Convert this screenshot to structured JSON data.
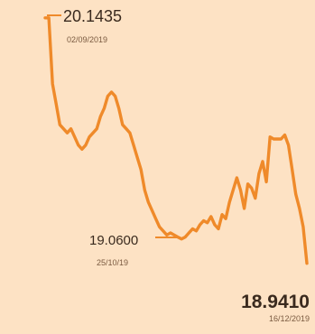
{
  "chart_data": {
    "type": "line",
    "title": "",
    "xlabel": "",
    "ylabel": "",
    "color": "#ef8a2a",
    "background": "#fde2c4",
    "grid": false,
    "legend": "none",
    "x_range": [
      "02/09/2019",
      "16/12/2019"
    ],
    "ylim": [
      18.9,
      20.2
    ],
    "series": [
      {
        "values": [
          20.1435,
          20.1435,
          19.82,
          19.72,
          19.62,
          19.6,
          19.58,
          19.6,
          19.56,
          19.52,
          19.5,
          19.52,
          19.56,
          19.58,
          19.6,
          19.66,
          19.7,
          19.76,
          19.78,
          19.76,
          19.7,
          19.62,
          19.6,
          19.58,
          19.52,
          19.46,
          19.4,
          19.3,
          19.24,
          19.2,
          19.16,
          19.12,
          19.1,
          19.08,
          19.09,
          19.08,
          19.07,
          19.06,
          19.07,
          19.09,
          19.11,
          19.1,
          19.13,
          19.15,
          19.14,
          19.17,
          19.13,
          19.11,
          19.18,
          19.16,
          19.24,
          19.3,
          19.36,
          19.3,
          19.21,
          19.33,
          19.31,
          19.26,
          19.38,
          19.44,
          19.34,
          19.56,
          19.55,
          19.55,
          19.55,
          19.57,
          19.52,
          19.4,
          19.28,
          19.21,
          19.12,
          18.941
        ]
      }
    ],
    "annotations": [
      {
        "value": "20.1435",
        "date": "02/09/2019"
      },
      {
        "value": "19.0600",
        "date": "25/10/19"
      },
      {
        "value": "18.9410",
        "date": "16/12/2019"
      }
    ]
  }
}
